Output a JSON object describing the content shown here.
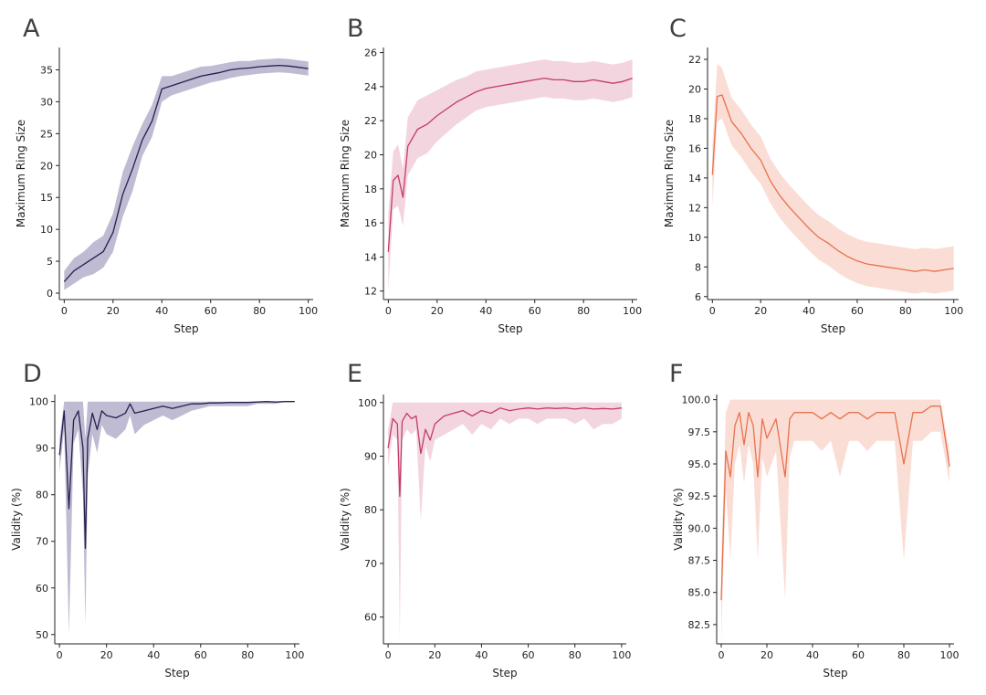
{
  "chart_data": [
    {
      "panel": "A",
      "type": "line",
      "xlabel": "Step",
      "ylabel": "Maximum Ring Size",
      "xlim": [
        -2,
        102
      ],
      "ylim": [
        -1,
        38.5
      ],
      "xticks": [
        0,
        20,
        40,
        60,
        80,
        100
      ],
      "yticks": [
        0,
        5,
        10,
        15,
        20,
        25,
        30,
        35
      ],
      "ytick_labels": [
        "0",
        "5",
        "10",
        "15",
        "20",
        "25",
        "30",
        "35"
      ],
      "color": "#2a1e4f",
      "band_color": "#8a84ad",
      "x": [
        0,
        4,
        8,
        12,
        16,
        20,
        24,
        28,
        32,
        36,
        40,
        44,
        48,
        52,
        56,
        60,
        64,
        68,
        72,
        76,
        80,
        84,
        88,
        92,
        96,
        100
      ],
      "y": [
        1.8,
        3.5,
        4.5,
        5.5,
        6.5,
        9.5,
        15.5,
        19.5,
        24,
        27,
        32,
        32.5,
        33,
        33.5,
        34,
        34.3,
        34.6,
        35,
        35.2,
        35.3,
        35.5,
        35.6,
        35.7,
        35.6,
        35.4,
        35.2
      ],
      "y_low": [
        0.5,
        1.5,
        2.5,
        3,
        4,
        6.5,
        12,
        16,
        21.5,
        24.5,
        30,
        31,
        31.5,
        32,
        32.5,
        33,
        33.3,
        33.7,
        34,
        34.2,
        34.4,
        34.5,
        34.6,
        34.5,
        34.3,
        34.1
      ],
      "y_high": [
        3.5,
        5.5,
        6.5,
        8,
        9,
        12.5,
        19,
        23,
        26.5,
        29.5,
        34,
        34,
        34.5,
        35,
        35.5,
        35.6,
        35.9,
        36.2,
        36.4,
        36.4,
        36.6,
        36.7,
        36.8,
        36.7,
        36.5,
        36.3
      ]
    },
    {
      "panel": "B",
      "type": "line",
      "xlabel": "Step",
      "ylabel": "Maximum Ring Size",
      "xlim": [
        -2,
        102
      ],
      "ylim": [
        11.5,
        26.3
      ],
      "xticks": [
        0,
        20,
        40,
        60,
        80,
        100
      ],
      "yticks": [
        12,
        14,
        16,
        18,
        20,
        22,
        24,
        26
      ],
      "ytick_labels": [
        "12",
        "14",
        "16",
        "18",
        "20",
        "22",
        "24",
        "26"
      ],
      "color": "#c43b6b",
      "band_color": "#eab2c4",
      "x": [
        0,
        2,
        4,
        6,
        8,
        12,
        16,
        20,
        24,
        28,
        32,
        36,
        40,
        44,
        48,
        52,
        56,
        60,
        64,
        68,
        72,
        76,
        80,
        84,
        88,
        92,
        96,
        100
      ],
      "y": [
        14.3,
        18.5,
        18.8,
        17.5,
        20.5,
        21.5,
        21.8,
        22.3,
        22.7,
        23.1,
        23.4,
        23.7,
        23.9,
        24,
        24.1,
        24.2,
        24.3,
        24.4,
        24.5,
        24.4,
        24.4,
        24.3,
        24.3,
        24.4,
        24.3,
        24.2,
        24.3,
        24.5
      ],
      "y_low": [
        12,
        16.8,
        17,
        15.8,
        18.8,
        19.8,
        20.1,
        20.8,
        21.3,
        21.8,
        22.2,
        22.6,
        22.8,
        22.9,
        23,
        23.1,
        23.2,
        23.3,
        23.4,
        23.3,
        23.3,
        23.2,
        23.2,
        23.3,
        23.2,
        23.1,
        23.2,
        23.4
      ],
      "y_high": [
        16.5,
        20.2,
        20.6,
        19.2,
        22.2,
        23.2,
        23.5,
        23.8,
        24.1,
        24.4,
        24.6,
        24.9,
        25,
        25.1,
        25.2,
        25.3,
        25.4,
        25.5,
        25.6,
        25.5,
        25.5,
        25.4,
        25.4,
        25.5,
        25.4,
        25.3,
        25.4,
        25.6
      ]
    },
    {
      "panel": "C",
      "type": "line",
      "xlabel": "Step",
      "ylabel": "Maximum Ring Size",
      "xlim": [
        -2,
        102
      ],
      "ylim": [
        5.8,
        22.8
      ],
      "xticks": [
        0,
        20,
        40,
        60,
        80,
        100
      ],
      "yticks": [
        6,
        8,
        10,
        12,
        14,
        16,
        18,
        20,
        22
      ],
      "ytick_labels": [
        "6",
        "8",
        "10",
        "12",
        "14",
        "16",
        "18",
        "20",
        "22"
      ],
      "color": "#e8714d",
      "band_color": "#f6c2b2",
      "x": [
        0,
        2,
        4,
        8,
        12,
        16,
        20,
        24,
        28,
        32,
        36,
        40,
        44,
        48,
        52,
        56,
        60,
        64,
        68,
        72,
        76,
        80,
        84,
        88,
        92,
        96,
        100
      ],
      "y": [
        14.2,
        19.5,
        19.6,
        17.8,
        17,
        16,
        15.2,
        13.8,
        12.8,
        12,
        11.3,
        10.6,
        10,
        9.6,
        9.1,
        8.7,
        8.4,
        8.2,
        8.1,
        8,
        7.9,
        7.8,
        7.7,
        7.8,
        7.7,
        7.8,
        7.9
      ],
      "y_low": [
        12,
        17.8,
        18,
        16.2,
        15.4,
        14.4,
        13.6,
        12.3,
        11.3,
        10.5,
        9.8,
        9.1,
        8.5,
        8.1,
        7.6,
        7.2,
        6.9,
        6.7,
        6.6,
        6.5,
        6.4,
        6.3,
        6.2,
        6.3,
        6.2,
        6.3,
        6.4
      ],
      "y_high": [
        16.2,
        21.7,
        21.4,
        19.4,
        18.6,
        17.6,
        16.8,
        15.3,
        14.3,
        13.5,
        12.8,
        12.1,
        11.5,
        11.1,
        10.6,
        10.2,
        9.9,
        9.7,
        9.6,
        9.5,
        9.4,
        9.3,
        9.2,
        9.3,
        9.2,
        9.3,
        9.4
      ]
    },
    {
      "panel": "D",
      "type": "line",
      "xlabel": "Step",
      "ylabel": "Validity (%)",
      "xlim": [
        -2,
        102
      ],
      "ylim": [
        48,
        101.5
      ],
      "xticks": [
        0,
        20,
        40,
        60,
        80,
        100
      ],
      "yticks": [
        50,
        60,
        70,
        80,
        90,
        100
      ],
      "ytick_labels": [
        "50",
        "60",
        "70",
        "80",
        "90",
        "100"
      ],
      "color": "#2a1e4f",
      "band_color": "#8a84ad",
      "x": [
        0,
        2,
        4,
        6,
        8,
        10,
        11,
        12,
        14,
        16,
        18,
        20,
        24,
        28,
        30,
        32,
        36,
        40,
        44,
        48,
        52,
        56,
        60,
        64,
        68,
        72,
        76,
        80,
        84,
        88,
        92,
        96,
        100
      ],
      "y": [
        88.5,
        98,
        77,
        96,
        98,
        90,
        68.5,
        92,
        97.5,
        94,
        98,
        97,
        96.5,
        97.5,
        99.5,
        97.5,
        98,
        98.5,
        99,
        98.5,
        99,
        99.5,
        99.5,
        99.7,
        99.7,
        99.8,
        99.8,
        99.8,
        99.9,
        100,
        99.9,
        100,
        100
      ],
      "y_low": [
        85,
        94,
        50,
        91,
        94,
        80,
        52,
        84,
        93,
        89,
        95,
        93,
        92,
        94,
        97,
        93,
        95,
        96,
        97,
        96,
        97,
        98,
        98.5,
        99,
        99,
        99,
        99,
        99,
        99.5,
        99.5,
        99.5,
        100,
        100
      ],
      "y_high": [
        92,
        100,
        100,
        100,
        100,
        100,
        92,
        100,
        100,
        100,
        100,
        100,
        100,
        100,
        100,
        100,
        100,
        100,
        100,
        100,
        100,
        100,
        100,
        100,
        100,
        100,
        100,
        100,
        100,
        100,
        100,
        100,
        100
      ]
    },
    {
      "panel": "E",
      "type": "line",
      "xlabel": "Step",
      "ylabel": "Validity (%)",
      "xlim": [
        -2,
        102
      ],
      "ylim": [
        55,
        101.5
      ],
      "xticks": [
        0,
        20,
        40,
        60,
        80,
        100
      ],
      "yticks": [
        60,
        70,
        80,
        90,
        100
      ],
      "ytick_labels": [
        "60",
        "70",
        "80",
        "90",
        "100"
      ],
      "color": "#c43b6b",
      "band_color": "#eab2c4",
      "x": [
        0,
        2,
        4,
        5,
        6,
        8,
        10,
        12,
        14,
        16,
        18,
        20,
        24,
        28,
        32,
        36,
        40,
        44,
        48,
        52,
        56,
        60,
        64,
        68,
        72,
        76,
        80,
        84,
        88,
        92,
        96,
        100
      ],
      "y": [
        91.5,
        97,
        96,
        82.5,
        96.5,
        98,
        97,
        97.5,
        90.5,
        95,
        93,
        96,
        97.5,
        98,
        98.5,
        97.5,
        98.5,
        98,
        99,
        98.5,
        98.8,
        99,
        98.8,
        99,
        98.9,
        99,
        98.8,
        99,
        98.8,
        98.9,
        98.8,
        99
      ],
      "y_low": [
        88,
        94,
        93,
        56,
        93,
        95,
        94,
        95,
        78,
        92,
        89,
        93,
        94,
        95,
        96,
        94,
        96,
        95,
        97,
        96,
        97,
        97,
        96,
        97,
        97,
        97,
        96,
        97,
        95,
        96,
        96,
        97
      ],
      "y_high": [
        95,
        100,
        100,
        100,
        100,
        100,
        100,
        100,
        100,
        100,
        100,
        100,
        100,
        100,
        100,
        100,
        100,
        100,
        100,
        100,
        100,
        100,
        100,
        100,
        100,
        100,
        100,
        100,
        100,
        100,
        100,
        100
      ]
    },
    {
      "panel": "F",
      "type": "line",
      "xlabel": "Step",
      "ylabel": "Validity (%)",
      "xlim": [
        -2,
        102
      ],
      "ylim": [
        81,
        100.4
      ],
      "xticks": [
        0,
        20,
        40,
        60,
        80,
        100
      ],
      "yticks": [
        82.5,
        85,
        87.5,
        90,
        92.5,
        95,
        97.5,
        100
      ],
      "ytick_labels": [
        "82.5",
        "85.0",
        "87.5",
        "90.0",
        "92.5",
        "95.0",
        "97.5",
        "100.0"
      ],
      "color": "#e8714d",
      "band_color": "#f6c2b2",
      "x": [
        0,
        2,
        4,
        6,
        8,
        10,
        12,
        14,
        16,
        18,
        20,
        24,
        28,
        30,
        32,
        36,
        40,
        44,
        48,
        52,
        56,
        60,
        64,
        68,
        72,
        76,
        80,
        84,
        88,
        92,
        96,
        100
      ],
      "y": [
        84.4,
        96,
        94,
        98,
        99,
        96.5,
        99,
        98,
        94,
        98.5,
        97,
        98.5,
        94,
        98.5,
        99,
        99,
        99,
        98.5,
        99,
        98.5,
        99,
        99,
        98.5,
        99,
        99,
        99,
        95,
        99,
        99,
        99.5,
        99.5,
        94.8
      ],
      "y_low": [
        81.2,
        93,
        87.5,
        95,
        96.5,
        93.5,
        96.5,
        95,
        87.5,
        95.5,
        94,
        96,
        84.5,
        95.5,
        96.8,
        96.8,
        96.8,
        96,
        96.8,
        94,
        96.8,
        96.8,
        96,
        96.8,
        96.8,
        96.8,
        87.5,
        96.8,
        96.8,
        97.5,
        97.5,
        93.5
      ],
      "y_high": [
        87.5,
        99,
        100,
        100,
        100,
        100,
        100,
        100,
        100,
        100,
        100,
        100,
        100,
        100,
        100,
        100,
        100,
        100,
        100,
        100,
        100,
        100,
        100,
        100,
        100,
        100,
        100,
        100,
        100,
        100,
        100,
        96
      ]
    }
  ]
}
